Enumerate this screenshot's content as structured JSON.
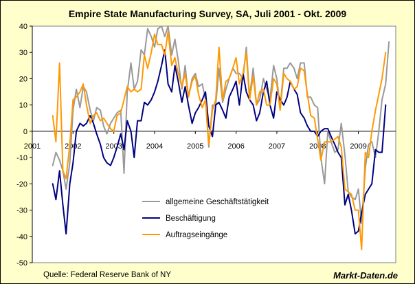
{
  "chart_data": {
    "type": "line",
    "title": "Empire State Manufacturing Survey, SA, Juli 2001 - Okt. 2009",
    "xlabel": "",
    "ylabel": "",
    "xlim": [
      2001,
      2009.917
    ],
    "ylim": [
      -50,
      40
    ],
    "y_ticks": [
      40,
      30,
      20,
      10,
      0,
      -10,
      -20,
      -30,
      -40,
      -50
    ],
    "x_ticks": [
      2001,
      2002,
      2003,
      2004,
      2005,
      2006,
      2007,
      2008,
      2009
    ],
    "x_tick_labels": [
      "2001",
      "2002",
      "2003",
      "2004",
      "2005",
      "2006",
      "2007",
      "2008",
      "2009"
    ],
    "grid": false,
    "legend_position": "lower-middle",
    "series": [
      {
        "name": "allgemeine Geschäftstätigkeit",
        "color": "#999999",
        "points": [
          [
            2001.5,
            -13
          ],
          [
            2001.58,
            -8
          ],
          [
            2001.67,
            -11
          ],
          [
            2001.75,
            -15
          ],
          [
            2001.83,
            -22
          ],
          [
            2001.92,
            -12
          ],
          [
            2002.0,
            8
          ],
          [
            2002.08,
            16
          ],
          [
            2002.17,
            9
          ],
          [
            2002.25,
            17
          ],
          [
            2002.33,
            15
          ],
          [
            2002.42,
            8
          ],
          [
            2002.5,
            4
          ],
          [
            2002.58,
            9
          ],
          [
            2002.67,
            8
          ],
          [
            2002.75,
            2
          ],
          [
            2002.83,
            -1
          ],
          [
            2002.92,
            3
          ],
          [
            2003.0,
            5
          ],
          [
            2003.08,
            7
          ],
          [
            2003.17,
            8
          ],
          [
            2003.25,
            -16
          ],
          [
            2003.33,
            15
          ],
          [
            2003.42,
            26
          ],
          [
            2003.5,
            16
          ],
          [
            2003.58,
            19
          ],
          [
            2003.67,
            31
          ],
          [
            2003.75,
            29
          ],
          [
            2003.83,
            39
          ],
          [
            2003.92,
            36
          ],
          [
            2004.0,
            32
          ],
          [
            2004.08,
            39
          ],
          [
            2004.17,
            40
          ],
          [
            2004.25,
            36
          ],
          [
            2004.33,
            40
          ],
          [
            2004.42,
            29
          ],
          [
            2004.5,
            35
          ],
          [
            2004.58,
            27
          ],
          [
            2004.67,
            16
          ],
          [
            2004.75,
            25
          ],
          [
            2004.83,
            13
          ],
          [
            2004.92,
            20
          ],
          [
            2005.0,
            22
          ],
          [
            2005.08,
            17
          ],
          [
            2005.17,
            18
          ],
          [
            2005.25,
            12
          ],
          [
            2005.33,
            -6
          ],
          [
            2005.42,
            10
          ],
          [
            2005.5,
            10
          ],
          [
            2005.58,
            24
          ],
          [
            2005.67,
            11
          ],
          [
            2005.75,
            16
          ],
          [
            2005.83,
            20
          ],
          [
            2005.92,
            24
          ],
          [
            2006.0,
            22
          ],
          [
            2006.08,
            22
          ],
          [
            2006.17,
            20
          ],
          [
            2006.25,
            32
          ],
          [
            2006.33,
            13
          ],
          [
            2006.42,
            24
          ],
          [
            2006.5,
            10
          ],
          [
            2006.58,
            12
          ],
          [
            2006.67,
            20
          ],
          [
            2006.75,
            16
          ],
          [
            2006.83,
            12
          ],
          [
            2006.92,
            25
          ],
          [
            2007.0,
            20
          ],
          [
            2007.08,
            9
          ],
          [
            2007.17,
            24
          ],
          [
            2007.25,
            24
          ],
          [
            2007.33,
            26
          ],
          [
            2007.42,
            24
          ],
          [
            2007.5,
            20
          ],
          [
            2007.58,
            26
          ],
          [
            2007.67,
            26
          ],
          [
            2007.75,
            13
          ],
          [
            2007.83,
            13
          ],
          [
            2007.92,
            10
          ],
          [
            2008.0,
            9
          ],
          [
            2008.08,
            -10
          ],
          [
            2008.17,
            -20
          ],
          [
            2008.25,
            0
          ],
          [
            2008.33,
            -4
          ],
          [
            2008.42,
            -8
          ],
          [
            2008.5,
            -7
          ],
          [
            2008.58,
            3
          ],
          [
            2008.67,
            -9
          ],
          [
            2008.75,
            -23
          ],
          [
            2008.83,
            -25
          ],
          [
            2008.92,
            -26
          ],
          [
            2009.0,
            -22
          ],
          [
            2009.08,
            -35
          ],
          [
            2009.17,
            -14
          ],
          [
            2009.25,
            -5
          ],
          [
            2009.33,
            -4
          ],
          [
            2009.42,
            -10
          ],
          [
            2009.5,
            0
          ],
          [
            2009.58,
            12
          ],
          [
            2009.67,
            18
          ],
          [
            2009.75,
            34
          ]
        ]
      },
      {
        "name": "Beschäftigung",
        "color": "#000080",
        "points": [
          [
            2001.5,
            -20
          ],
          [
            2001.58,
            -26
          ],
          [
            2001.67,
            -15
          ],
          [
            2001.75,
            -28
          ],
          [
            2001.83,
            -39
          ],
          [
            2001.92,
            -20
          ],
          [
            2002.0,
            -12
          ],
          [
            2002.08,
            0
          ],
          [
            2002.17,
            3
          ],
          [
            2002.25,
            2
          ],
          [
            2002.33,
            3
          ],
          [
            2002.42,
            6
          ],
          [
            2002.5,
            3
          ],
          [
            2002.58,
            -1
          ],
          [
            2002.67,
            -5
          ],
          [
            2002.75,
            -10
          ],
          [
            2002.83,
            -12
          ],
          [
            2002.92,
            -13
          ],
          [
            2003.0,
            -10
          ],
          [
            2003.08,
            -6
          ],
          [
            2003.17,
            -1
          ],
          [
            2003.25,
            -7
          ],
          [
            2003.33,
            4
          ],
          [
            2003.42,
            0
          ],
          [
            2003.5,
            -10
          ],
          [
            2003.58,
            4
          ],
          [
            2003.67,
            4
          ],
          [
            2003.75,
            11
          ],
          [
            2003.83,
            10
          ],
          [
            2003.92,
            12
          ],
          [
            2004.0,
            15
          ],
          [
            2004.08,
            19
          ],
          [
            2004.17,
            25
          ],
          [
            2004.25,
            31
          ],
          [
            2004.33,
            18
          ],
          [
            2004.42,
            15
          ],
          [
            2004.5,
            25
          ],
          [
            2004.58,
            19
          ],
          [
            2004.67,
            11
          ],
          [
            2004.75,
            17
          ],
          [
            2004.83,
            10
          ],
          [
            2004.92,
            3
          ],
          [
            2005.0,
            7
          ],
          [
            2005.08,
            9
          ],
          [
            2005.17,
            12
          ],
          [
            2005.25,
            15
          ],
          [
            2005.33,
            2
          ],
          [
            2005.42,
            -2
          ],
          [
            2005.5,
            10
          ],
          [
            2005.58,
            11
          ],
          [
            2005.67,
            8
          ],
          [
            2005.75,
            5
          ],
          [
            2005.83,
            13
          ],
          [
            2005.92,
            16
          ],
          [
            2006.0,
            19
          ],
          [
            2006.08,
            10
          ],
          [
            2006.17,
            22
          ],
          [
            2006.25,
            15
          ],
          [
            2006.33,
            12
          ],
          [
            2006.42,
            10
          ],
          [
            2006.5,
            4
          ],
          [
            2006.58,
            7
          ],
          [
            2006.67,
            15
          ],
          [
            2006.75,
            19
          ],
          [
            2006.83,
            10
          ],
          [
            2006.92,
            5
          ],
          [
            2007.0,
            15
          ],
          [
            2007.08,
            12
          ],
          [
            2007.17,
            10
          ],
          [
            2007.25,
            13
          ],
          [
            2007.33,
            19
          ],
          [
            2007.42,
            16
          ],
          [
            2007.5,
            14
          ],
          [
            2007.58,
            7
          ],
          [
            2007.67,
            5
          ],
          [
            2007.75,
            2
          ],
          [
            2007.83,
            0
          ],
          [
            2007.92,
            0
          ],
          [
            2008.0,
            -2
          ],
          [
            2008.08,
            0
          ],
          [
            2008.17,
            1
          ],
          [
            2008.25,
            1
          ],
          [
            2008.33,
            -2
          ],
          [
            2008.42,
            -5
          ],
          [
            2008.5,
            -8
          ],
          [
            2008.58,
            -10
          ],
          [
            2008.67,
            -28
          ],
          [
            2008.75,
            -24
          ],
          [
            2008.83,
            -30
          ],
          [
            2008.92,
            -39
          ],
          [
            2009.0,
            -38
          ],
          [
            2009.08,
            -31
          ],
          [
            2009.17,
            -24
          ],
          [
            2009.25,
            -22
          ],
          [
            2009.33,
            -20
          ],
          [
            2009.42,
            -7
          ],
          [
            2009.5,
            -8
          ],
          [
            2009.58,
            -8
          ],
          [
            2009.67,
            10
          ]
        ]
      },
      {
        "name": "Auftragseingänge",
        "color": "#ff9900",
        "points": [
          [
            2001.5,
            6
          ],
          [
            2001.58,
            -4
          ],
          [
            2001.67,
            26
          ],
          [
            2001.75,
            -15
          ],
          [
            2001.83,
            -18
          ],
          [
            2001.92,
            -5
          ],
          [
            2002.0,
            12
          ],
          [
            2002.08,
            13
          ],
          [
            2002.17,
            15
          ],
          [
            2002.25,
            18
          ],
          [
            2002.33,
            10
          ],
          [
            2002.42,
            3
          ],
          [
            2002.5,
            6
          ],
          [
            2002.58,
            7
          ],
          [
            2002.67,
            4
          ],
          [
            2002.75,
            5
          ],
          [
            2002.83,
            3
          ],
          [
            2002.92,
            1
          ],
          [
            2003.0,
            0
          ],
          [
            2003.08,
            6
          ],
          [
            2003.17,
            7
          ],
          [
            2003.25,
            12
          ],
          [
            2003.33,
            17
          ],
          [
            2003.42,
            15
          ],
          [
            2003.5,
            16
          ],
          [
            2003.58,
            15
          ],
          [
            2003.67,
            16
          ],
          [
            2003.75,
            29
          ],
          [
            2003.83,
            24
          ],
          [
            2003.92,
            30
          ],
          [
            2004.0,
            37
          ],
          [
            2004.08,
            33
          ],
          [
            2004.17,
            33
          ],
          [
            2004.25,
            29
          ],
          [
            2004.33,
            38
          ],
          [
            2004.42,
            25
          ],
          [
            2004.5,
            28
          ],
          [
            2004.58,
            22
          ],
          [
            2004.67,
            17
          ],
          [
            2004.75,
            22
          ],
          [
            2004.83,
            13
          ],
          [
            2004.92,
            19
          ],
          [
            2005.0,
            21
          ],
          [
            2005.08,
            14
          ],
          [
            2005.17,
            9
          ],
          [
            2005.25,
            12
          ],
          [
            2005.33,
            -5
          ],
          [
            2005.42,
            8
          ],
          [
            2005.5,
            12
          ],
          [
            2005.58,
            32
          ],
          [
            2005.67,
            12
          ],
          [
            2005.75,
            19
          ],
          [
            2005.83,
            20
          ],
          [
            2005.92,
            24
          ],
          [
            2006.0,
            28
          ],
          [
            2006.08,
            18
          ],
          [
            2006.17,
            22
          ],
          [
            2006.25,
            30
          ],
          [
            2006.33,
            12
          ],
          [
            2006.42,
            21
          ],
          [
            2006.5,
            10
          ],
          [
            2006.58,
            15
          ],
          [
            2006.67,
            16
          ],
          [
            2006.75,
            10
          ],
          [
            2006.83,
            10
          ],
          [
            2006.92,
            20
          ],
          [
            2007.0,
            18
          ],
          [
            2007.08,
            8
          ],
          [
            2007.17,
            22
          ],
          [
            2007.25,
            20
          ],
          [
            2007.33,
            19
          ],
          [
            2007.42,
            16
          ],
          [
            2007.5,
            17
          ],
          [
            2007.58,
            24
          ],
          [
            2007.67,
            23
          ],
          [
            2007.75,
            14
          ],
          [
            2007.83,
            6
          ],
          [
            2007.92,
            5
          ],
          [
            2008.0,
            -3
          ],
          [
            2008.08,
            -11
          ],
          [
            2008.17,
            -4
          ],
          [
            2008.25,
            -4
          ],
          [
            2008.33,
            -4
          ],
          [
            2008.42,
            -3
          ],
          [
            2008.5,
            -2
          ],
          [
            2008.58,
            -6
          ],
          [
            2008.67,
            -22
          ],
          [
            2008.75,
            -23
          ],
          [
            2008.83,
            -24
          ],
          [
            2008.92,
            -30
          ],
          [
            2009.0,
            -30
          ],
          [
            2009.08,
            -45
          ],
          [
            2009.17,
            -8
          ],
          [
            2009.25,
            -10
          ],
          [
            2009.33,
            0
          ],
          [
            2009.42,
            8
          ],
          [
            2009.5,
            14
          ],
          [
            2009.58,
            20
          ],
          [
            2009.67,
            30
          ]
        ]
      }
    ],
    "source_text": "Quelle: Federal Reserve Bank of NY",
    "brand_text": "Markt-Daten.de"
  }
}
